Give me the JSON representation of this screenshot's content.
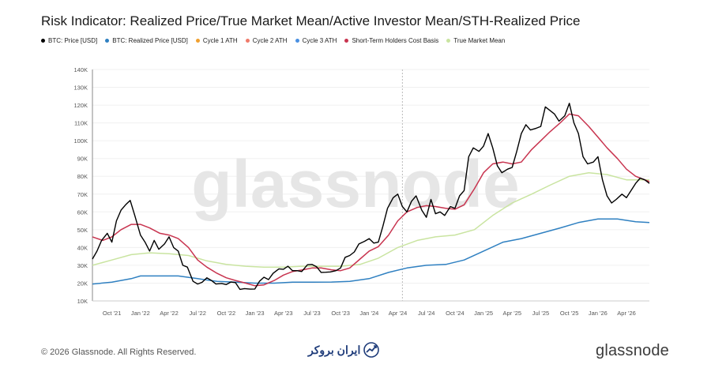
{
  "title": "Risk Indicator: Realized Price/True Market Mean/Active Investor Mean/STH-Realized Price",
  "legend": [
    {
      "label": "BTC: Price [USD]",
      "color": "#000000"
    },
    {
      "label": "BTC: Realized Price [USD]",
      "color": "#2f80c1"
    },
    {
      "label": "Cycle 1 ATH",
      "color": "#f0a030"
    },
    {
      "label": "Cycle 2 ATH",
      "color": "#f07a6a"
    },
    {
      "label": "Cycle 3 ATH",
      "color": "#4a90e2"
    },
    {
      "label": "Short-Term Holders Cost Basis",
      "color": "#c8344f"
    },
    {
      "label": "True Market Mean",
      "color": "#c9e4a0"
    }
  ],
  "watermark": "glassnode",
  "footer": {
    "copyright": "© 2026 Glassnode. All Rights Reserved.",
    "broker": "ایران بروکر",
    "brand": "glassnode"
  },
  "chart_data": {
    "type": "line",
    "x_ticks": [
      "Oct '21",
      "Jan '22",
      "Apr '22",
      "Jul '22",
      "Oct '22",
      "Jan '23",
      "Apr '23",
      "Jul '23",
      "Oct '23",
      "Jan '24",
      "Apr '24",
      "Jul '24",
      "Oct '24",
      "Jan '25",
      "Apr '25",
      "Jul '25",
      "Oct '25",
      "Jan '26",
      "Apr '26"
    ],
    "y_ticks": [
      "10K",
      "20K",
      "30K",
      "40K",
      "50K",
      "60K",
      "70K",
      "80K",
      "90K",
      "100K",
      "110K",
      "120K",
      "130K",
      "140K"
    ],
    "ylim": [
      10000,
      140000
    ],
    "xlim": [
      2021.58,
      2026.45
    ],
    "marker_x": 2024.29,
    "series": [
      {
        "name": "BTC: Price [USD]",
        "color": "#000000",
        "x": [
          2021.58,
          2021.62,
          2021.66,
          2021.71,
          2021.75,
          2021.79,
          2021.83,
          2021.87,
          2021.91,
          2021.95,
          2022.0,
          2022.04,
          2022.08,
          2022.12,
          2022.16,
          2022.21,
          2022.25,
          2022.29,
          2022.33,
          2022.37,
          2022.41,
          2022.46,
          2022.5,
          2022.54,
          2022.58,
          2022.62,
          2022.66,
          2022.71,
          2022.75,
          2022.79,
          2022.83,
          2022.87,
          2022.91,
          2022.96,
          2023.0,
          2023.04,
          2023.08,
          2023.12,
          2023.16,
          2023.21,
          2023.25,
          2023.29,
          2023.33,
          2023.37,
          2023.41,
          2023.46,
          2023.5,
          2023.54,
          2023.58,
          2023.62,
          2023.66,
          2023.71,
          2023.75,
          2023.79,
          2023.83,
          2023.87,
          2023.91,
          2023.96,
          2024.0,
          2024.04,
          2024.08,
          2024.12,
          2024.16,
          2024.21,
          2024.25,
          2024.29,
          2024.33,
          2024.37,
          2024.41,
          2024.46,
          2024.5,
          2024.54,
          2024.58,
          2024.62,
          2024.66,
          2024.71,
          2024.75,
          2024.79,
          2024.83,
          2024.87,
          2024.91,
          2024.96,
          2025.0,
          2025.04,
          2025.08,
          2025.12,
          2025.16,
          2025.21,
          2025.25,
          2025.29,
          2025.33,
          2025.37,
          2025.41,
          2025.46,
          2025.5,
          2025.54,
          2025.58,
          2025.62,
          2025.66,
          2025.71,
          2025.75,
          2025.79,
          2025.83,
          2025.87,
          2025.91,
          2025.96,
          2026.0,
          2026.04,
          2026.08,
          2026.12,
          2026.16,
          2026.21,
          2026.25,
          2026.29,
          2026.33,
          2026.37,
          2026.41,
          2026.45
        ],
        "values": [
          33500,
          38000,
          44000,
          48000,
          43000,
          55000,
          61000,
          64000,
          66500,
          58000,
          47000,
          43000,
          38000,
          44000,
          39000,
          42000,
          46000,
          40000,
          38000,
          30000,
          29000,
          21000,
          19500,
          20500,
          23000,
          21500,
          19500,
          19800,
          19200,
          20600,
          20300,
          16500,
          16900,
          16600,
          16700,
          21000,
          23300,
          22000,
          25500,
          28000,
          27800,
          29500,
          27000,
          27000,
          26500,
          30300,
          30500,
          29200,
          26000,
          26100,
          26300,
          27000,
          28500,
          34500,
          35500,
          37500,
          42000,
          43500,
          45000,
          42500,
          43000,
          52000,
          62000,
          68000,
          70000,
          63000,
          60000,
          66000,
          69000,
          61000,
          57000,
          67000,
          59000,
          60000,
          58000,
          63000,
          62000,
          69000,
          72000,
          91000,
          96000,
          94000,
          97000,
          104000,
          96000,
          86000,
          82000,
          84000,
          85000,
          94000,
          104000,
          109000,
          106000,
          107000,
          108000,
          119000,
          117000,
          115000,
          111000,
          114000,
          121000,
          110000,
          104000,
          91000,
          87000,
          88000,
          91000,
          78000,
          69000,
          65000,
          67000,
          70000,
          68000,
          72000,
          76000,
          79000,
          78000,
          76000
        ]
      },
      {
        "name": "BTC: Realized Price [USD]",
        "color": "#2f80c1",
        "x": [
          2021.58,
          2021.75,
          2021.92,
          2022.0,
          2022.17,
          2022.33,
          2022.5,
          2022.67,
          2022.83,
          2023.0,
          2023.17,
          2023.33,
          2023.5,
          2023.67,
          2023.83,
          2024.0,
          2024.17,
          2024.33,
          2024.5,
          2024.67,
          2024.83,
          2025.0,
          2025.17,
          2025.33,
          2025.5,
          2025.67,
          2025.83,
          2026.0,
          2026.17,
          2026.33,
          2026.45
        ],
        "values": [
          19500,
          20500,
          22500,
          24000,
          24000,
          24000,
          22500,
          21000,
          20500,
          20000,
          20000,
          20500,
          20500,
          20600,
          21000,
          22500,
          26000,
          28500,
          30000,
          30500,
          33000,
          38000,
          43000,
          45000,
          48000,
          51000,
          54000,
          56000,
          56000,
          54500,
          54000
        ]
      },
      {
        "name": "Short-Term Holders Cost Basis",
        "color": "#c8344f",
        "x": [
          2021.58,
          2021.67,
          2021.75,
          2021.83,
          2021.92,
          2022.0,
          2022.08,
          2022.17,
          2022.25,
          2022.33,
          2022.42,
          2022.5,
          2022.58,
          2022.67,
          2022.75,
          2022.83,
          2022.92,
          2023.0,
          2023.08,
          2023.17,
          2023.25,
          2023.33,
          2023.42,
          2023.5,
          2023.58,
          2023.67,
          2023.75,
          2023.83,
          2023.92,
          2024.0,
          2024.08,
          2024.17,
          2024.25,
          2024.33,
          2024.42,
          2024.5,
          2024.58,
          2024.67,
          2024.75,
          2024.83,
          2024.92,
          2025.0,
          2025.08,
          2025.17,
          2025.25,
          2025.33,
          2025.42,
          2025.5,
          2025.58,
          2025.67,
          2025.75,
          2025.83,
          2025.92,
          2026.0,
          2026.08,
          2026.17,
          2026.25,
          2026.33,
          2026.45
        ],
        "values": [
          46000,
          44000,
          46000,
          50000,
          53000,
          53000,
          51000,
          48000,
          47000,
          45000,
          40000,
          33000,
          29000,
          25500,
          23000,
          21500,
          20000,
          18500,
          19000,
          21500,
          24500,
          26500,
          27500,
          28500,
          28500,
          27500,
          27000,
          28500,
          33500,
          38000,
          40500,
          47000,
          55000,
          60000,
          62500,
          63500,
          63000,
          62000,
          61500,
          64000,
          73000,
          82000,
          87000,
          88000,
          87000,
          88000,
          95000,
          100000,
          105000,
          110000,
          115000,
          114000,
          108000,
          102000,
          96000,
          90000,
          84000,
          80000,
          77000
        ]
      },
      {
        "name": "True Market Mean",
        "color": "#c9e4a0",
        "x": [
          2021.58,
          2021.75,
          2021.92,
          2022.08,
          2022.25,
          2022.42,
          2022.58,
          2022.75,
          2022.92,
          2023.08,
          2023.25,
          2023.42,
          2023.58,
          2023.75,
          2023.92,
          2024.08,
          2024.25,
          2024.42,
          2024.58,
          2024.75,
          2024.92,
          2025.08,
          2025.25,
          2025.42,
          2025.58,
          2025.75,
          2025.92,
          2026.08,
          2026.25,
          2026.45
        ],
        "values": [
          30000,
          33000,
          36000,
          37000,
          36500,
          35500,
          32500,
          30500,
          29500,
          29000,
          29000,
          29500,
          29500,
          29500,
          30500,
          34000,
          40000,
          44000,
          46000,
          47000,
          50000,
          58000,
          65000,
          70000,
          75000,
          80000,
          82000,
          81000,
          78000,
          78000
        ]
      }
    ]
  }
}
